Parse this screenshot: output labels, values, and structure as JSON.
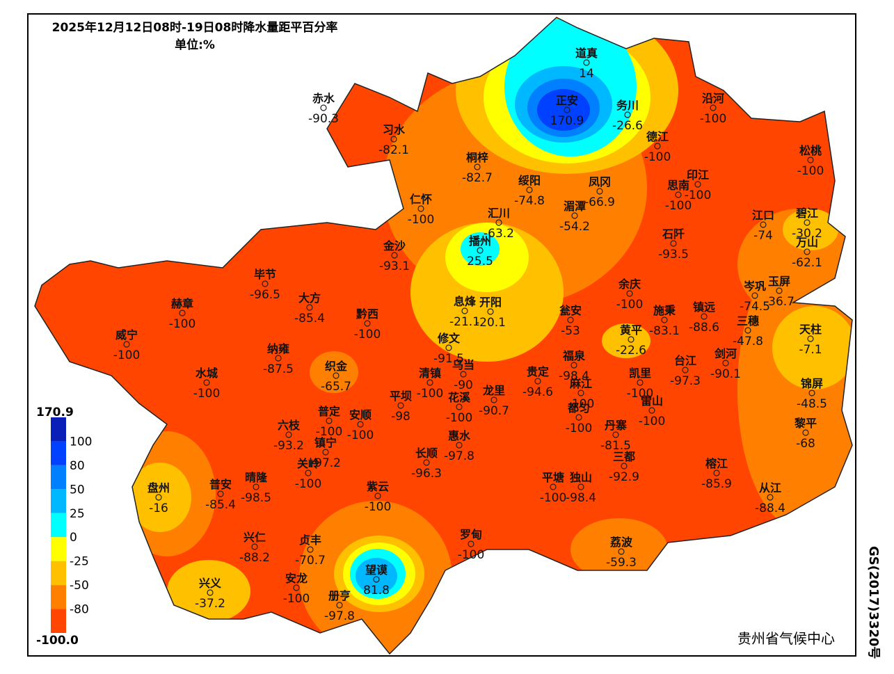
{
  "header": {
    "title": "2025年12月12日08时-19日08时降水量距平百分率",
    "unit": "单位:%"
  },
  "stations": [
    {
      "name": "道真",
      "value": 14
    },
    {
      "name": "正安",
      "value": 170.9
    },
    {
      "name": "务川",
      "value": -26.6
    },
    {
      "name": "沿河",
      "value": -100
    },
    {
      "name": "赤水",
      "value": -90.3
    },
    {
      "name": "习水",
      "value": -82.1
    },
    {
      "name": "桐梓",
      "value": -82.7
    },
    {
      "name": "德江",
      "value": -100
    },
    {
      "name": "松桃",
      "value": -100
    },
    {
      "name": "绥阳",
      "value": -74.8
    },
    {
      "name": "凤冈",
      "value": -66.9
    },
    {
      "name": "思南",
      "value": -100
    },
    {
      "name": "印江",
      "value": -100
    },
    {
      "name": "仁怀",
      "value": -100
    },
    {
      "name": "湄潭",
      "value": -54.2
    },
    {
      "name": "汇川",
      "value": -63.2
    },
    {
      "name": "江口",
      "value": -74
    },
    {
      "name": "碧江",
      "value": -30.2
    },
    {
      "name": "万山",
      "value": -62.1
    },
    {
      "name": "金沙",
      "value": -93.1
    },
    {
      "name": "播州",
      "value": 25.5
    },
    {
      "name": "石阡",
      "value": -93.5
    },
    {
      "name": "毕节",
      "value": -96.5
    },
    {
      "name": "大方",
      "value": -85.4
    },
    {
      "name": "余庆",
      "value": -100
    },
    {
      "name": "岑巩",
      "value": -74.5
    },
    {
      "name": "玉屏",
      "value": -36.7
    },
    {
      "name": "赫章",
      "value": -100
    },
    {
      "name": "息烽",
      "value": -21.1
    },
    {
      "name": "开阳",
      "value": -20.1
    },
    {
      "name": "瓮安",
      "value": -53
    },
    {
      "name": "施秉",
      "value": -83.1
    },
    {
      "name": "镇远",
      "value": -88.6
    },
    {
      "name": "黔西",
      "value": -100
    },
    {
      "name": "三穗",
      "value": -47.8
    },
    {
      "name": "天柱",
      "value": -7.1
    },
    {
      "name": "黄平",
      "value": -22.6
    },
    {
      "name": "威宁",
      "value": -100
    },
    {
      "name": "修文",
      "value": -91.5
    },
    {
      "name": "纳雍",
      "value": -87.5
    },
    {
      "name": "织金",
      "value": -65.7
    },
    {
      "name": "福泉",
      "value": -98.4
    },
    {
      "name": "剑河",
      "value": -90.1
    },
    {
      "name": "台江",
      "value": -97.3
    },
    {
      "name": "水城",
      "value": -100
    },
    {
      "name": "清镇",
      "value": -100
    },
    {
      "name": "乌当",
      "value": -90
    },
    {
      "name": "龙里",
      "value": -90.7
    },
    {
      "name": "贵定",
      "value": -94.6
    },
    {
      "name": "麻江",
      "value": -100
    },
    {
      "name": "凯里",
      "value": -100
    },
    {
      "name": "花溪",
      "value": -100
    },
    {
      "name": "锦屏",
      "value": -48.5
    },
    {
      "name": "平坝",
      "value": -98
    },
    {
      "name": "都匀",
      "value": -100
    },
    {
      "name": "雷山",
      "value": -100
    },
    {
      "name": "普定",
      "value": -100
    },
    {
      "name": "安顺",
      "value": -100
    },
    {
      "name": "六枝",
      "value": -93.2
    },
    {
      "name": "镇宁",
      "value": -97.2
    },
    {
      "name": "惠水",
      "value": -97.8
    },
    {
      "name": "丹寨",
      "value": -81.5
    },
    {
      "name": "黎平",
      "value": -68
    },
    {
      "name": "长顺",
      "value": -96.3
    },
    {
      "name": "关岭",
      "value": -100
    },
    {
      "name": "三都",
      "value": -92.9
    },
    {
      "name": "晴隆",
      "value": -98.5
    },
    {
      "name": "普安",
      "value": -85.4
    },
    {
      "name": "平塘",
      "value": -100
    },
    {
      "name": "独山",
      "value": -98.4
    },
    {
      "name": "榕江",
      "value": -85.9
    },
    {
      "name": "盘州",
      "value": -16
    },
    {
      "name": "紫云",
      "value": -100
    },
    {
      "name": "从江",
      "value": -88.4
    },
    {
      "name": "罗甸",
      "value": -100
    },
    {
      "name": "荔波",
      "value": -59.3
    },
    {
      "name": "兴仁",
      "value": -88.2
    },
    {
      "name": "贞丰",
      "value": -70.7
    },
    {
      "name": "望谟",
      "value": 81.8
    },
    {
      "name": "安龙",
      "value": -100
    },
    {
      "name": "兴义",
      "value": -37.2
    },
    {
      "name": "册亨",
      "value": -97.8
    }
  ],
  "legend": {
    "labels": [
      "170.9",
      "100",
      "80",
      "50",
      "25",
      "0",
      "-25",
      "-50",
      "-80",
      "-100.0"
    ],
    "colors": [
      "#0a1fb8",
      "#0040ff",
      "#0080ff",
      "#00b8ff",
      "#00ffff",
      "#ffff00",
      "#ffc000",
      "#ff8000",
      "#ff4500"
    ]
  },
  "footer": {
    "credit": "贵州省气候中心",
    "code": "GS(2017)3320号"
  }
}
